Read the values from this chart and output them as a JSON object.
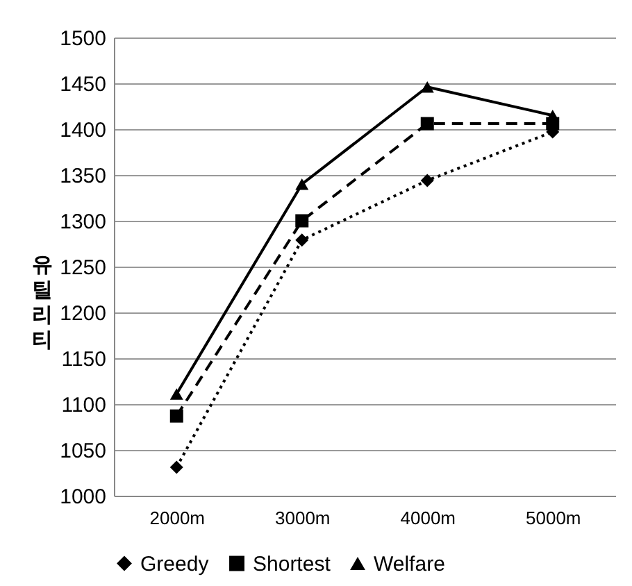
{
  "chart_data": {
    "type": "line",
    "ylabel": "유틸리티",
    "categories": [
      "2000m",
      "3000m",
      "4000m",
      "5000m"
    ],
    "series": [
      {
        "name": "Greedy",
        "color": "#000000",
        "marker": "diamond",
        "line_style": "dotted",
        "values": [
          1031,
          1279,
          1344,
          1397
        ]
      },
      {
        "name": "Shortest",
        "color": "#000000",
        "marker": "square",
        "line_style": "dashed",
        "values": [
          1087,
          1300,
          1406,
          1406
        ]
      },
      {
        "name": "Welfare",
        "color": "#000000",
        "marker": "triangle",
        "line_style": "solid",
        "values": [
          1111,
          1340,
          1446,
          1415
        ]
      }
    ],
    "ylim": [
      1000,
      1500
    ],
    "yticks": [
      1000,
      1050,
      1100,
      1150,
      1200,
      1250,
      1300,
      1350,
      1400,
      1450,
      1500
    ],
    "grid": "y",
    "legend": "bottom"
  }
}
